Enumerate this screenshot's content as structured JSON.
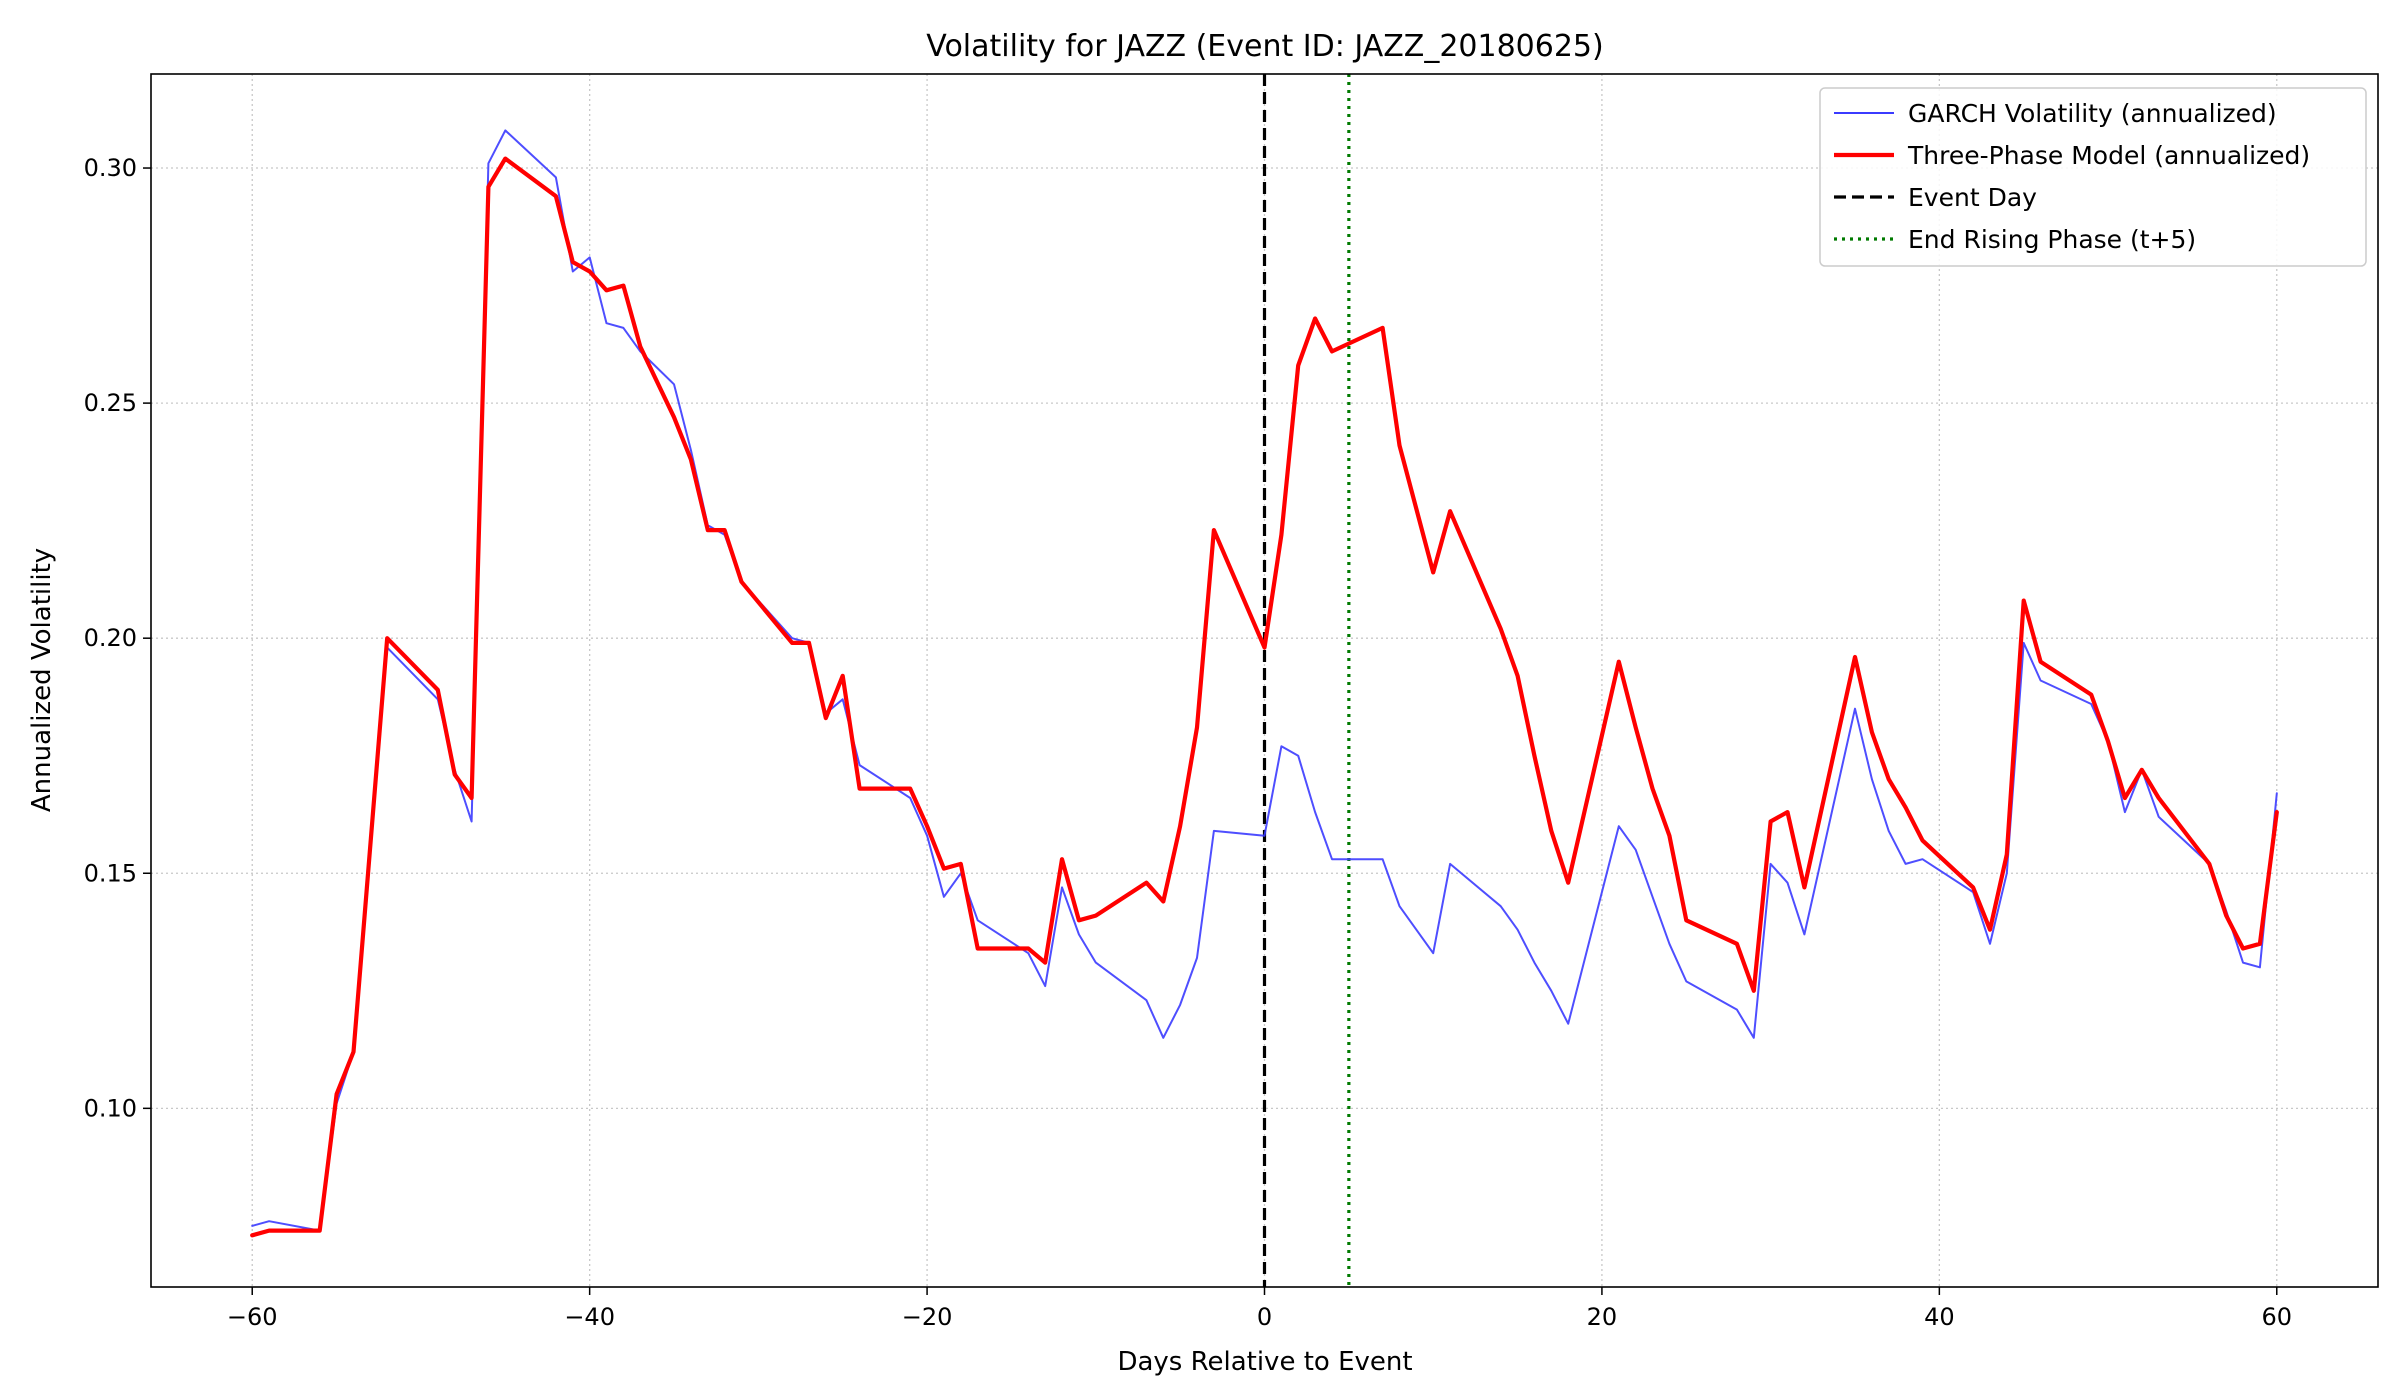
{
  "chart_data": {
    "type": "line",
    "title": "Volatility for JAZZ (Event ID: JAZZ_20180625)",
    "xlabel": "Days Relative to Event",
    "ylabel": "Annualized Volatility",
    "xlim": [
      -66,
      66
    ],
    "ylim": [
      0.062,
      0.32
    ],
    "xticks": [
      -60,
      -40,
      -20,
      0,
      20,
      40,
      60
    ],
    "xtick_labels": [
      "−60",
      "−40",
      "−20",
      "0",
      "20",
      "40",
      "60"
    ],
    "yticks": [
      0.1,
      0.15,
      0.2,
      0.25,
      0.3
    ],
    "ytick_labels": [
      "0.10",
      "0.15",
      "0.20",
      "0.25",
      "0.30"
    ],
    "grid": true,
    "legend_position": "top-right",
    "series": [
      {
        "name": "GARCH Volatility (annualized)",
        "color": "#3b3bff",
        "style": "solid",
        "x": [
          -60,
          -59,
          -56,
          -55,
          -54,
          -52,
          -49,
          -48,
          -47,
          -46,
          -45,
          -42,
          -41,
          -40,
          -39,
          -38,
          -37,
          -35,
          -34,
          -33,
          -32,
          -31,
          -28,
          -27,
          -26,
          -25,
          -24,
          -21,
          -20,
          -19,
          -18,
          -17,
          -14,
          -13,
          -12,
          -11,
          -10,
          -7,
          -6,
          -5,
          -4,
          -3,
          0,
          1,
          2,
          3,
          4,
          7,
          8,
          10,
          11,
          14,
          15,
          16,
          17,
          18,
          21,
          22,
          23,
          24,
          25,
          28,
          29,
          30,
          31,
          32,
          35,
          36,
          37,
          38,
          39,
          42,
          43,
          44,
          45,
          46,
          49,
          50,
          51,
          52,
          53,
          56,
          57,
          58,
          59,
          60
        ],
        "values": [
          0.075,
          0.076,
          0.074,
          0.101,
          0.112,
          0.198,
          0.187,
          0.172,
          0.161,
          0.301,
          0.308,
          0.298,
          0.278,
          0.281,
          0.267,
          0.266,
          0.261,
          0.254,
          0.24,
          0.224,
          0.222,
          0.212,
          0.2,
          0.199,
          0.184,
          0.187,
          0.173,
          0.166,
          0.158,
          0.145,
          0.15,
          0.14,
          0.133,
          0.126,
          0.147,
          0.137,
          0.131,
          0.123,
          0.115,
          0.122,
          0.132,
          0.159,
          0.158,
          0.177,
          0.175,
          0.163,
          0.153,
          0.153,
          0.143,
          0.133,
          0.152,
          0.143,
          0.138,
          0.131,
          0.125,
          0.118,
          0.16,
          0.155,
          0.145,
          0.135,
          0.127,
          0.121,
          0.115,
          0.152,
          0.148,
          0.137,
          0.185,
          0.17,
          0.159,
          0.152,
          0.153,
          0.146,
          0.135,
          0.15,
          0.199,
          0.191,
          0.186,
          0.178,
          0.163,
          0.172,
          0.162,
          0.152,
          0.142,
          0.131,
          0.13,
          0.167
        ]
      },
      {
        "name": "Three-Phase Model (annualized)",
        "color": "#ff0000",
        "style": "solid",
        "x": [
          -60,
          -59,
          -56,
          -55,
          -54,
          -52,
          -49,
          -48,
          -47,
          -46,
          -45,
          -42,
          -41,
          -40,
          -39,
          -38,
          -37,
          -35,
          -34,
          -33,
          -32,
          -31,
          -28,
          -27,
          -26,
          -25,
          -24,
          -21,
          -20,
          -19,
          -18,
          -17,
          -14,
          -13,
          -12,
          -11,
          -10,
          -7,
          -6,
          -5,
          -4,
          -3,
          0,
          1,
          2,
          3,
          4,
          7,
          8,
          10,
          11,
          14,
          15,
          16,
          17,
          18,
          21,
          22,
          23,
          24,
          25,
          28,
          29,
          30,
          31,
          32,
          35,
          36,
          37,
          38,
          39,
          42,
          43,
          44,
          45,
          46,
          49,
          50,
          51,
          52,
          53,
          56,
          57,
          58,
          59,
          60
        ],
        "values": [
          0.073,
          0.074,
          0.074,
          0.103,
          0.112,
          0.2,
          0.189,
          0.171,
          0.166,
          0.296,
          0.302,
          0.294,
          0.28,
          0.278,
          0.274,
          0.275,
          0.262,
          0.247,
          0.238,
          0.223,
          0.223,
          0.212,
          0.199,
          0.199,
          0.183,
          0.192,
          0.168,
          0.168,
          0.16,
          0.151,
          0.152,
          0.134,
          0.134,
          0.131,
          0.153,
          0.14,
          0.141,
          0.148,
          0.144,
          0.16,
          0.181,
          0.223,
          0.198,
          0.222,
          0.258,
          0.268,
          0.261,
          0.266,
          0.241,
          0.214,
          0.227,
          0.202,
          0.192,
          0.175,
          0.159,
          0.148,
          0.195,
          0.181,
          0.168,
          0.158,
          0.14,
          0.135,
          0.125,
          0.161,
          0.163,
          0.147,
          0.196,
          0.18,
          0.17,
          0.164,
          0.157,
          0.147,
          0.138,
          0.154,
          0.208,
          0.195,
          0.188,
          0.178,
          0.166,
          0.172,
          0.166,
          0.152,
          0.141,
          0.134,
          0.135,
          0.163
        ]
      }
    ],
    "reference_lines": [
      {
        "name": "Event Day",
        "x": 0,
        "color": "#000000",
        "style": "dashed"
      },
      {
        "name": "End Rising Phase (t+5)",
        "x": 5,
        "color": "#007a00",
        "style": "dotted"
      }
    ]
  }
}
